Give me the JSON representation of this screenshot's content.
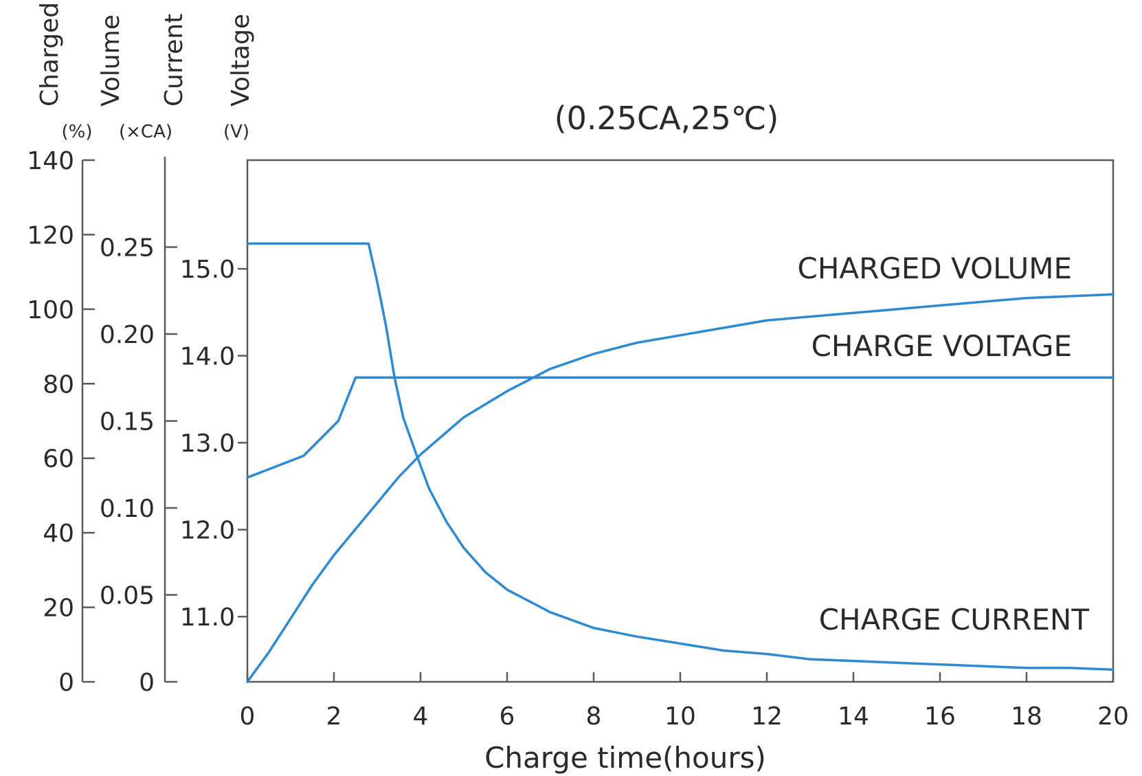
{
  "chart_data": {
    "type": "line",
    "title": "(0.25CA,25℃)",
    "xlabel": "Charge time(hours)",
    "x_ticks": [
      0,
      2,
      4,
      6,
      8,
      10,
      12,
      14,
      16,
      18,
      20
    ],
    "xlim": [
      0,
      20
    ],
    "grid": false,
    "axes": [
      {
        "id": "volume",
        "title": "Charged",
        "unit": "(%)",
        "ticks": [
          0,
          20,
          40,
          60,
          80,
          100,
          120,
          140
        ],
        "range": [
          0,
          140
        ]
      },
      {
        "id": "current",
        "title": "Volume",
        "unit": "(×CA)",
        "ticks": [
          "0",
          "0.05",
          "0.10",
          "0.15",
          "0.20",
          "0.25"
        ],
        "range": [
          0,
          0.3
        ]
      },
      {
        "id": "current_title",
        "title": "Current"
      },
      {
        "id": "voltage",
        "title": "Voltage",
        "unit": "(V)",
        "ticks": [
          "11.0",
          "12.0",
          "13.0",
          "14.0",
          "15.0"
        ],
        "range": [
          10.25,
          16.25
        ]
      }
    ],
    "series": [
      {
        "name": "CHARGE CURRENT",
        "axis": "current",
        "color": "#2d8ad2",
        "x": [
          0,
          2.8,
          3.0,
          3.2,
          3.4,
          3.6,
          3.9,
          4.2,
          4.6,
          5.0,
          5.5,
          6.0,
          7.0,
          8.0,
          9.0,
          10.0,
          11.0,
          12.0,
          13.0,
          14.0,
          15.0,
          16.0,
          17.0,
          18.0,
          19.0,
          20.0
        ],
        "y": [
          0.252,
          0.252,
          0.23,
          0.205,
          0.175,
          0.152,
          0.131,
          0.111,
          0.092,
          0.077,
          0.063,
          0.053,
          0.04,
          0.031,
          0.026,
          0.022,
          0.018,
          0.016,
          0.013,
          0.012,
          0.011,
          0.01,
          0.009,
          0.008,
          0.008,
          0.007
        ]
      },
      {
        "name": "CHARGE VOLTAGE",
        "axis": "voltage",
        "color": "#2d8ad2",
        "x": [
          0,
          1.3,
          2.1,
          2.5,
          20
        ],
        "y": [
          12.6,
          12.85,
          13.25,
          13.75,
          13.75
        ]
      },
      {
        "name": "CHARGED VOLUME",
        "axis": "volume",
        "color": "#2d8ad2",
        "x": [
          0,
          0.5,
          1.0,
          1.5,
          2.0,
          2.5,
          3.0,
          3.5,
          4.0,
          5.0,
          6.0,
          7.0,
          8.0,
          9.0,
          10.0,
          12.0,
          14.0,
          16.0,
          18.0,
          20.0
        ],
        "y": [
          0,
          8,
          17,
          26,
          34,
          41,
          48,
          55,
          61,
          71,
          78,
          84,
          88,
          91,
          93,
          97,
          99,
          101,
          103,
          104
        ]
      }
    ]
  }
}
